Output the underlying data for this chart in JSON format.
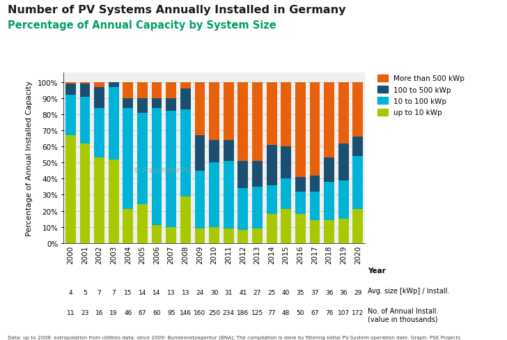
{
  "years": [
    "2000",
    "2001",
    "2002",
    "2003",
    "2004",
    "2005",
    "2006",
    "2007",
    "2008",
    "2009",
    "2010",
    "2011",
    "2012",
    "2013",
    "2014",
    "2015",
    "2016",
    "2017",
    "2018",
    "2019",
    "2020"
  ],
  "avg_size": [
    4,
    5,
    7,
    7,
    15,
    14,
    14,
    13,
    13,
    24,
    30,
    31,
    41,
    27,
    25,
    40,
    35,
    37,
    36,
    36,
    29
  ],
  "no_annual": [
    11,
    23,
    16,
    19,
    46,
    67,
    60,
    95,
    146,
    160,
    250,
    234,
    186,
    125,
    77,
    48,
    50,
    67,
    76,
    107,
    172
  ],
  "up_to_10": [
    67,
    62,
    53,
    52,
    21,
    24,
    11,
    10,
    29,
    9,
    10,
    9,
    8,
    9,
    18,
    21,
    18,
    14,
    14,
    15,
    21
  ],
  "to_100": [
    25,
    29,
    31,
    45,
    63,
    57,
    73,
    72,
    54,
    36,
    40,
    42,
    26,
    26,
    18,
    19,
    14,
    18,
    24,
    24,
    33
  ],
  "to_500": [
    7,
    8,
    13,
    3,
    6,
    9,
    6,
    8,
    13,
    22,
    14,
    13,
    17,
    16,
    25,
    20,
    9,
    10,
    15,
    23,
    12
  ],
  "over_500": [
    1,
    1,
    3,
    0,
    10,
    10,
    10,
    10,
    4,
    33,
    36,
    36,
    49,
    49,
    39,
    40,
    59,
    58,
    47,
    38,
    34
  ],
  "color_up_to_10": "#a8c800",
  "color_to_100": "#00b4d8",
  "color_to_500": "#1b4f72",
  "color_over_500": "#e8600a",
  "title1": "Number of PV Systems Annually Installed in Germany",
  "title2": "Percentage of Annual Capacity by System Size",
  "ylabel": "Percentage of Annual Installed Capacity",
  "xlabel_year": "Year",
  "label_avg": "Avg. size [kWp] / Install.",
  "label_no": "No. of Annual Install.\n(value in thousands)",
  "legend_over500": "More than 500 kWp",
  "legend_to500": "100 to 500 kWp",
  "legend_to100": "10 to 100 kWp",
  "legend_up10": "up to 10 kWp",
  "footnote": "Data: up to 2008: extrapolation from utilities data; since 2009: Bundesnetzagentur (BNA); The compilation is done by filtering initial PV-System operation date. Graph: PSE Projects",
  "watermark": "© Fraunhofer ISE",
  "background_color": "#ffffff",
  "plot_bg_color": "#f0f0f0"
}
